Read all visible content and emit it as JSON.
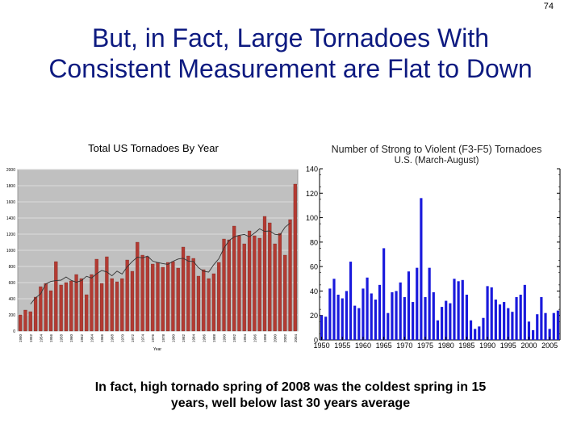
{
  "page_number": "74",
  "slide": {
    "title_line1": "But, in Fact, Large Tornadoes With",
    "title_line2": "Consistent Measurement are Flat to Down",
    "caption_line1": "In fact, high tornado spring of 2008 was the coldest spring in 15",
    "caption_line2": "years, well below last 30 years average"
  },
  "colors": {
    "title": "#0d1a80",
    "left_bar": "#b33a32",
    "left_plot_bg": "#c0c0c0",
    "right_bar": "#1a1adc"
  },
  "chart_data": [
    {
      "type": "bar",
      "title": "Total US Tornadoes By Year",
      "xlabel": "Year",
      "ylabel": "",
      "ylim": [
        0,
        2000
      ],
      "yticks": [
        0,
        200,
        400,
        600,
        800,
        1000,
        1200,
        1400,
        1600,
        1800,
        2000
      ],
      "xtick_labels": [
        "1950",
        "1952",
        "1954",
        "1956",
        "1958",
        "1960",
        "1962",
        "1964",
        "1966",
        "1968",
        "1970",
        "1972",
        "1974",
        "1976",
        "1978",
        "1980",
        "1982",
        "1984",
        "1986",
        "1988",
        "1990",
        "1992",
        "1994",
        "1996",
        "1998",
        "2000",
        "2002",
        "2004"
      ],
      "grid": true,
      "has_trend_line": true,
      "x": [
        1950,
        1951,
        1952,
        1953,
        1954,
        1955,
        1956,
        1957,
        1958,
        1959,
        1960,
        1961,
        1962,
        1963,
        1964,
        1965,
        1966,
        1967,
        1968,
        1969,
        1970,
        1971,
        1972,
        1973,
        1974,
        1975,
        1976,
        1977,
        1978,
        1979,
        1980,
        1981,
        1982,
        1983,
        1984,
        1985,
        1986,
        1987,
        1988,
        1989,
        1990,
        1991,
        1992,
        1993,
        1994,
        1995,
        1996,
        1997,
        1998,
        1999,
        2000,
        2001,
        2002,
        2003,
        2004
      ],
      "values": [
        200,
        260,
        240,
        420,
        550,
        590,
        500,
        860,
        570,
        600,
        620,
        700,
        650,
        450,
        700,
        890,
        590,
        920,
        650,
        610,
        650,
        880,
        740,
        1100,
        940,
        920,
        830,
        850,
        790,
        850,
        860,
        780,
        1040,
        930,
        900,
        680,
        760,
        650,
        710,
        850,
        1140,
        1130,
        1300,
        1180,
        1080,
        1240,
        1180,
        1150,
        1420,
        1340,
        1080,
        1210,
        940,
        1380,
        1820
      ]
    },
    {
      "type": "bar",
      "title": "Number of Strong to Violent (F3-F5) Tornadoes",
      "subtitle": "U.S. (March-August)",
      "xlabel": "",
      "ylabel": "",
      "ylim": [
        0,
        140
      ],
      "yticks": [
        0,
        20,
        40,
        60,
        80,
        100,
        120,
        140
      ],
      "xtick_labels": [
        "1950",
        "1955",
        "1960",
        "1965",
        "1970",
        "1975",
        "1980",
        "1985",
        "1990",
        "1995",
        "2000",
        "2005"
      ],
      "x": [
        1950,
        1951,
        1952,
        1953,
        1954,
        1955,
        1956,
        1957,
        1958,
        1959,
        1960,
        1961,
        1962,
        1963,
        1964,
        1965,
        1966,
        1967,
        1968,
        1969,
        1970,
        1971,
        1972,
        1973,
        1974,
        1975,
        1976,
        1977,
        1978,
        1979,
        1980,
        1981,
        1982,
        1983,
        1984,
        1985,
        1986,
        1987,
        1988,
        1989,
        1990,
        1991,
        1992,
        1993,
        1994,
        1995,
        1996,
        1997,
        1998,
        1999,
        2000,
        2001,
        2002,
        2003,
        2004,
        2005,
        2006,
        2007
      ],
      "values": [
        20,
        19,
        42,
        50,
        37,
        34,
        40,
        64,
        28,
        26,
        42,
        51,
        38,
        33,
        45,
        75,
        22,
        39,
        40,
        47,
        35,
        56,
        31,
        59,
        116,
        35,
        59,
        39,
        16,
        27,
        32,
        30,
        50,
        48,
        49,
        37,
        16,
        9,
        11,
        18,
        44,
        43,
        33,
        29,
        31,
        26,
        23,
        35,
        37,
        45,
        15,
        8,
        21,
        35,
        22,
        9,
        22,
        24
      ]
    }
  ]
}
